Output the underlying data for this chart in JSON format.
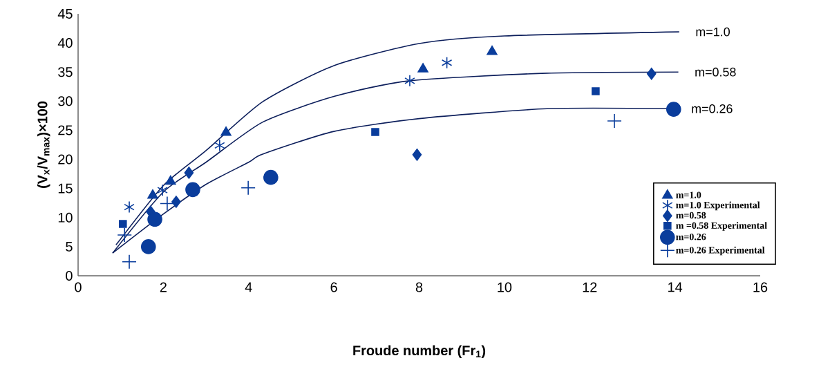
{
  "chart_data": {
    "type": "scatter",
    "xlabel": "Froude number (Fr$_{1}$)",
    "ylabel": "(V$_{x}$/V$_{max}$)×100",
    "xlim": [
      0,
      16
    ],
    "ylim": [
      0,
      45
    ],
    "xticks": [
      0,
      2,
      4,
      6,
      8,
      10,
      12,
      14,
      16
    ],
    "yticks": [
      0,
      5,
      10,
      15,
      20,
      25,
      30,
      35,
      40,
      45
    ],
    "grid": false,
    "legend": "bottom right",
    "series": [
      {
        "name": "m=1.0",
        "color": "#0a3d9c",
        "marker": "triangle",
        "x": [
          1.75,
          2.17,
          3.47,
          8.09,
          9.71
        ],
        "values": [
          13.8,
          16.2,
          24.6,
          35.5,
          38.5
        ]
      },
      {
        "name": "m=1.0 Experimental",
        "color": "#0a3d9c",
        "marker": "cross",
        "x": [
          1.2,
          1.98,
          3.32,
          7.78,
          8.65
        ],
        "values": [
          11.8,
          14.7,
          22.4,
          33.5,
          36.6
        ]
      },
      {
        "name": "m=0.58",
        "color": "#0a3d9c",
        "marker": "diamond",
        "x": [
          1.7,
          2.3,
          2.6,
          7.95,
          13.45
        ],
        "values": [
          11,
          12.7,
          17.7,
          20.8,
          34.7
        ]
      },
      {
        "name": "m =0.58 Experimental",
        "color": "#0a3d9c",
        "marker": "square",
        "x": [
          1.05,
          6.97,
          12.14
        ],
        "values": [
          8.9,
          24.7,
          31.7
        ]
      },
      {
        "name": "m=0.26",
        "color": "#0a3d9c",
        "marker": "circle",
        "x": [
          1.65,
          1.8,
          2.69,
          4.52,
          13.97
        ],
        "values": [
          5,
          9.7,
          14.8,
          16.9,
          28.6
        ]
      },
      {
        "name": "m=0.26 Experimental",
        "color": "#0a3d9c",
        "marker": "plus",
        "x": [
          1.2,
          1.09,
          2.09,
          3.99,
          12.58
        ],
        "values": [
          2.4,
          7,
          12.4,
          15.1,
          26.6
        ]
      },
      {
        "type": "line",
        "color": "#0d1f5c",
        "marker": "none",
        "x": [
          0.89,
          2,
          3,
          4.33,
          6,
          8,
          10,
          14.1
        ],
        "values": [
          5.3,
          15.5,
          21.5,
          29.9,
          36.1,
          39.9,
          41.2,
          41.9
        ]
      },
      {
        "type": "line",
        "color": "#0d1f5c",
        "marker": "none",
        "x": [
          0.81,
          2,
          3,
          4.33,
          6,
          7.78,
          11,
          14.08
        ],
        "values": [
          3.9,
          14.4,
          19.5,
          26.4,
          30.8,
          33.5,
          34.8,
          35
        ]
      },
      {
        "type": "line",
        "color": "#0d1f5c",
        "marker": "none",
        "x": [
          0.81,
          2,
          3,
          4,
          4.33,
          6,
          8,
          11,
          14
        ],
        "values": [
          3.9,
          10.6,
          15.7,
          19.5,
          20.9,
          24.8,
          27,
          28.7,
          28.7
        ]
      }
    ],
    "annotations": [
      {
        "text": "m=1.0",
        "x": 14.1,
        "y": 41.9
      },
      {
        "text": "m=0.58",
        "x": 14.08,
        "y": 35
      },
      {
        "text": "m=0.26",
        "x": 14,
        "y": 28.7
      }
    ]
  }
}
